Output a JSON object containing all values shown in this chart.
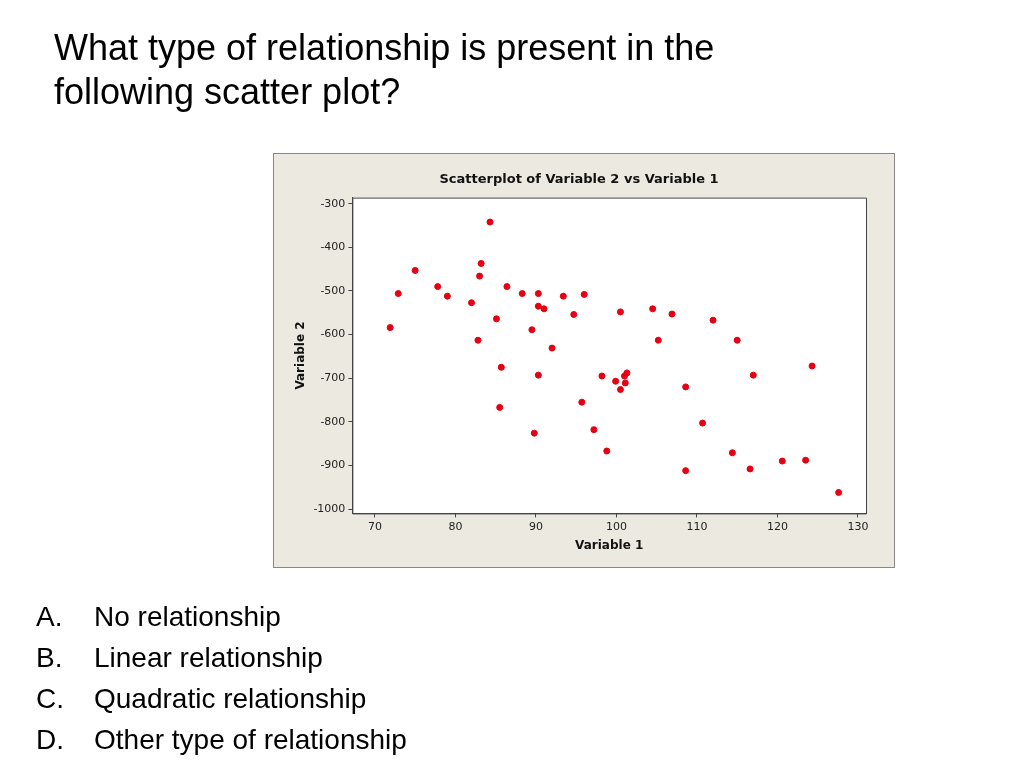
{
  "chart_data": {
    "type": "scatter",
    "title": "Scatterplot of Variable 2 vs Variable 1",
    "xlabel": "Variable 1",
    "ylabel": "Variable 2",
    "annotations": [
      "What type of relationship is present in the following scatter plot?",
      "A.\tNo relationship",
      "B.\tLinear relationship",
      "C.\tQuadratic relationship",
      "D.\tOther type of relationship"
    ],
    "xlim": [
      67.2,
      131
    ],
    "xticks": [
      70,
      80,
      90,
      100,
      110,
      120,
      130
    ],
    "ylim": [
      -1010,
      -286
    ],
    "yticks": [
      -1000,
      -900,
      -800,
      -700,
      -600,
      -500,
      -400,
      -300
    ],
    "grid": false,
    "legend": false,
    "marker": "circle",
    "series": [
      {
        "color": "#e60012",
        "x": [
          71.9,
          72.9,
          75.0,
          77.8,
          79.0,
          82.0,
          82.8,
          83.0,
          83.2,
          84.3,
          85.1,
          85.7,
          85.5,
          86.4,
          88.3,
          89.5,
          89.8,
          90.3,
          90.3,
          90.3,
          91.0,
          92.0,
          93.4,
          94.7,
          95.7,
          96.0,
          100.5,
          104.5,
          106.9,
          112.0,
          105.2,
          115.0,
          124.3,
          117.0,
          98.2,
          99.9,
          101.0,
          101.3,
          101.1,
          100.5,
          108.6,
          97.2,
          110.7,
          98.8,
          114.4,
          108.6,
          116.6,
          120.6,
          123.5,
          127.6
        ],
        "values": [
          -584,
          -506,
          -453,
          -490,
          -512,
          -527,
          -613,
          -466,
          -437,
          -342,
          -564,
          -675,
          -767,
          -490,
          -506,
          -589,
          -826,
          -506,
          -535,
          -693,
          -541,
          -631,
          -512,
          -554,
          -755,
          -508,
          -548,
          -541,
          -553,
          -567,
          -613,
          -613,
          -672,
          -693,
          -695,
          -707,
          -695,
          -688,
          -711,
          -726,
          -720,
          -818,
          -803,
          -867,
          -871,
          -912,
          -908,
          -890,
          -888,
          -962
        ]
      }
    ]
  }
}
